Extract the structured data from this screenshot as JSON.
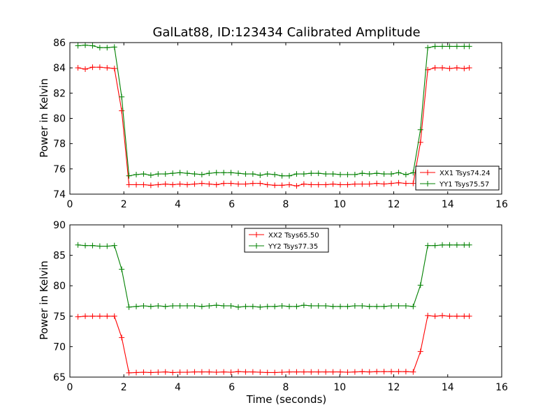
{
  "chart_data": [
    {
      "type": "line",
      "title": "GalLat88, ID:123434 Calibrated Amplitude",
      "xlabel": "",
      "ylabel": "Power in Kelvin",
      "xlim": [
        0,
        16
      ],
      "ylim": [
        74,
        86
      ],
      "xticks": [
        0,
        2,
        4,
        6,
        8,
        10,
        12,
        14,
        16
      ],
      "yticks": [
        74,
        76,
        78,
        80,
        82,
        84,
        86
      ],
      "legend_position": "lower-right",
      "grid": false,
      "series": [
        {
          "name": "XX1 Tsys74.24",
          "color": "#ff0000",
          "marker": "plus",
          "x": [
            0.3,
            0.57,
            0.84,
            1.11,
            1.38,
            1.65,
            1.92,
            2.19,
            2.46,
            2.73,
            3.0,
            3.27,
            3.54,
            3.81,
            4.08,
            4.35,
            4.62,
            4.89,
            5.16,
            5.43,
            5.7,
            5.97,
            6.24,
            6.51,
            6.78,
            7.05,
            7.32,
            7.59,
            7.86,
            8.13,
            8.4,
            8.67,
            8.94,
            9.21,
            9.48,
            9.75,
            10.02,
            10.29,
            10.56,
            10.83,
            11.1,
            11.37,
            11.64,
            11.91,
            12.18,
            12.45,
            12.72,
            12.99,
            13.26,
            13.53,
            13.8,
            14.07,
            14.34,
            14.61,
            14.8
          ],
          "y": [
            84.0,
            83.9,
            84.05,
            84.05,
            84.0,
            83.95,
            80.6,
            74.75,
            74.75,
            74.75,
            74.7,
            74.75,
            74.8,
            74.75,
            74.8,
            74.75,
            74.8,
            74.85,
            74.8,
            74.75,
            74.85,
            74.85,
            74.8,
            74.8,
            74.85,
            74.85,
            74.75,
            74.7,
            74.7,
            74.75,
            74.65,
            74.8,
            74.75,
            74.75,
            74.75,
            74.8,
            74.75,
            74.75,
            74.8,
            74.8,
            74.8,
            74.85,
            74.8,
            74.85,
            74.9,
            74.85,
            74.85,
            78.1,
            83.85,
            84.0,
            84.0,
            83.95,
            84.0,
            83.95,
            84.0
          ]
        },
        {
          "name": "YY1 Tsys75.57",
          "color": "#008000",
          "marker": "plus",
          "x": [
            0.3,
            0.57,
            0.84,
            1.11,
            1.38,
            1.65,
            1.92,
            2.19,
            2.46,
            2.73,
            3.0,
            3.27,
            3.54,
            3.81,
            4.08,
            4.35,
            4.62,
            4.89,
            5.16,
            5.43,
            5.7,
            5.97,
            6.24,
            6.51,
            6.78,
            7.05,
            7.32,
            7.59,
            7.86,
            8.13,
            8.4,
            8.67,
            8.94,
            9.21,
            9.48,
            9.75,
            10.02,
            10.29,
            10.56,
            10.83,
            11.1,
            11.37,
            11.64,
            11.91,
            12.18,
            12.45,
            12.72,
            12.99,
            13.26,
            13.53,
            13.8,
            14.07,
            14.34,
            14.61,
            14.8
          ],
          "y": [
            85.75,
            85.8,
            85.75,
            85.6,
            85.6,
            85.65,
            81.7,
            75.45,
            75.55,
            75.6,
            75.5,
            75.6,
            75.6,
            75.65,
            75.7,
            75.65,
            75.6,
            75.55,
            75.65,
            75.7,
            75.7,
            75.7,
            75.65,
            75.6,
            75.6,
            75.5,
            75.6,
            75.55,
            75.45,
            75.45,
            75.6,
            75.6,
            75.65,
            75.65,
            75.6,
            75.6,
            75.55,
            75.55,
            75.55,
            75.65,
            75.6,
            75.65,
            75.6,
            75.6,
            75.7,
            75.55,
            75.7,
            79.1,
            85.6,
            85.7,
            85.7,
            85.7,
            85.7,
            85.7,
            85.7
          ]
        }
      ]
    },
    {
      "type": "line",
      "title": "",
      "xlabel": "Time (seconds)",
      "ylabel": "Power in Kelvin",
      "xlim": [
        0,
        16
      ],
      "ylim": [
        65,
        90
      ],
      "xticks": [
        0,
        2,
        4,
        6,
        8,
        10,
        12,
        14,
        16
      ],
      "yticks": [
        65,
        70,
        75,
        80,
        85,
        90
      ],
      "legend_position": "upper-center",
      "grid": false,
      "series": [
        {
          "name": "XX2 Tsys65.50",
          "color": "#ff0000",
          "marker": "plus",
          "x": [
            0.3,
            0.57,
            0.84,
            1.11,
            1.38,
            1.65,
            1.92,
            2.19,
            2.46,
            2.73,
            3.0,
            3.27,
            3.54,
            3.81,
            4.08,
            4.35,
            4.62,
            4.89,
            5.16,
            5.43,
            5.7,
            5.97,
            6.24,
            6.51,
            6.78,
            7.05,
            7.32,
            7.59,
            7.86,
            8.13,
            8.4,
            8.67,
            8.94,
            9.21,
            9.48,
            9.75,
            10.02,
            10.29,
            10.56,
            10.83,
            11.1,
            11.37,
            11.64,
            11.91,
            12.18,
            12.45,
            12.72,
            12.99,
            13.26,
            13.53,
            13.8,
            14.07,
            14.34,
            14.61,
            14.8
          ],
          "y": [
            74.9,
            75.0,
            75.0,
            75.0,
            75.0,
            75.0,
            71.5,
            65.7,
            65.75,
            65.8,
            65.75,
            65.8,
            65.85,
            65.75,
            65.8,
            65.8,
            65.85,
            65.85,
            65.85,
            65.8,
            65.85,
            65.8,
            65.9,
            65.85,
            65.85,
            65.8,
            65.75,
            65.75,
            65.8,
            65.85,
            65.85,
            65.85,
            65.85,
            65.85,
            65.85,
            65.85,
            65.85,
            65.8,
            65.85,
            65.9,
            65.85,
            65.9,
            65.9,
            65.9,
            65.9,
            65.9,
            65.85,
            69.2,
            75.1,
            75.0,
            75.1,
            75.0,
            75.0,
            75.0,
            75.0
          ]
        },
        {
          "name": "YY2 Tsys77.35",
          "color": "#008000",
          "marker": "plus",
          "x": [
            0.3,
            0.57,
            0.84,
            1.11,
            1.38,
            1.65,
            1.92,
            2.19,
            2.46,
            2.73,
            3.0,
            3.27,
            3.54,
            3.81,
            4.08,
            4.35,
            4.62,
            4.89,
            5.16,
            5.43,
            5.7,
            5.97,
            6.24,
            6.51,
            6.78,
            7.05,
            7.32,
            7.59,
            7.86,
            8.13,
            8.4,
            8.67,
            8.94,
            9.21,
            9.48,
            9.75,
            10.02,
            10.29,
            10.56,
            10.83,
            11.1,
            11.37,
            11.64,
            11.91,
            12.18,
            12.45,
            12.72,
            12.99,
            13.26,
            13.53,
            13.8,
            14.07,
            14.34,
            14.61,
            14.8
          ],
          "y": [
            86.7,
            86.6,
            86.6,
            86.5,
            86.5,
            86.6,
            82.7,
            76.5,
            76.6,
            76.7,
            76.6,
            76.7,
            76.6,
            76.7,
            76.7,
            76.7,
            76.7,
            76.6,
            76.7,
            76.8,
            76.7,
            76.7,
            76.5,
            76.6,
            76.6,
            76.5,
            76.6,
            76.6,
            76.7,
            76.6,
            76.6,
            76.8,
            76.7,
            76.7,
            76.7,
            76.6,
            76.6,
            76.6,
            76.7,
            76.7,
            76.6,
            76.6,
            76.6,
            76.7,
            76.7,
            76.7,
            76.6,
            80.1,
            86.6,
            86.6,
            86.7,
            86.7,
            86.7,
            86.7,
            86.7
          ]
        }
      ]
    }
  ]
}
